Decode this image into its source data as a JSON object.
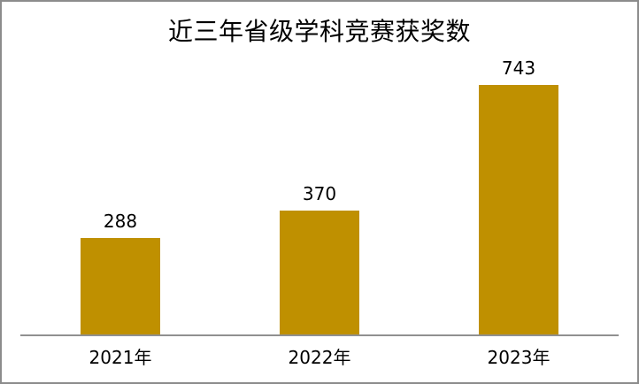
{
  "chart_data": {
    "type": "bar",
    "title": "近三年省级学科竞赛获奖数",
    "categories": [
      "2021年",
      "2022年",
      "2023年"
    ],
    "values": [
      288,
      370,
      743
    ],
    "data_labels_shown": true,
    "xlabel": "",
    "ylabel": "",
    "ylim": [
      0,
      800
    ],
    "grid": false,
    "legend": false,
    "bar_color": "#BF9000",
    "axis_color": "#909090",
    "text_color": "#000000",
    "frame_border_color": "#8C8C8C",
    "background_color": "#FFFFFF"
  }
}
